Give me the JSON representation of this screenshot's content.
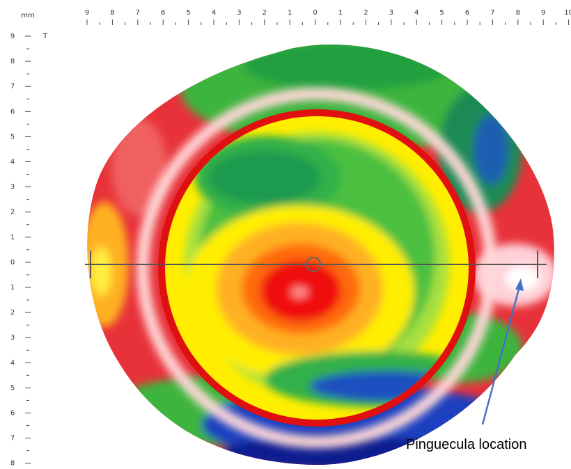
{
  "ruler_unit": "mm",
  "top_ruler": {
    "labels": [
      "9",
      "8",
      "7",
      "6",
      "5",
      "4",
      "3",
      "2",
      "1",
      "0",
      "1",
      "2",
      "3",
      "4",
      "5",
      "6",
      "7",
      "8",
      "9",
      "10"
    ]
  },
  "left_ruler": {
    "labels": [
      "9",
      "8",
      "7",
      "6",
      "5",
      "4",
      "3",
      "2",
      "1",
      "0",
      "1",
      "2",
      "3",
      "4",
      "5",
      "6",
      "7",
      "8"
    ],
    "marker": "T"
  },
  "annotation": "Pinguecula location"
}
